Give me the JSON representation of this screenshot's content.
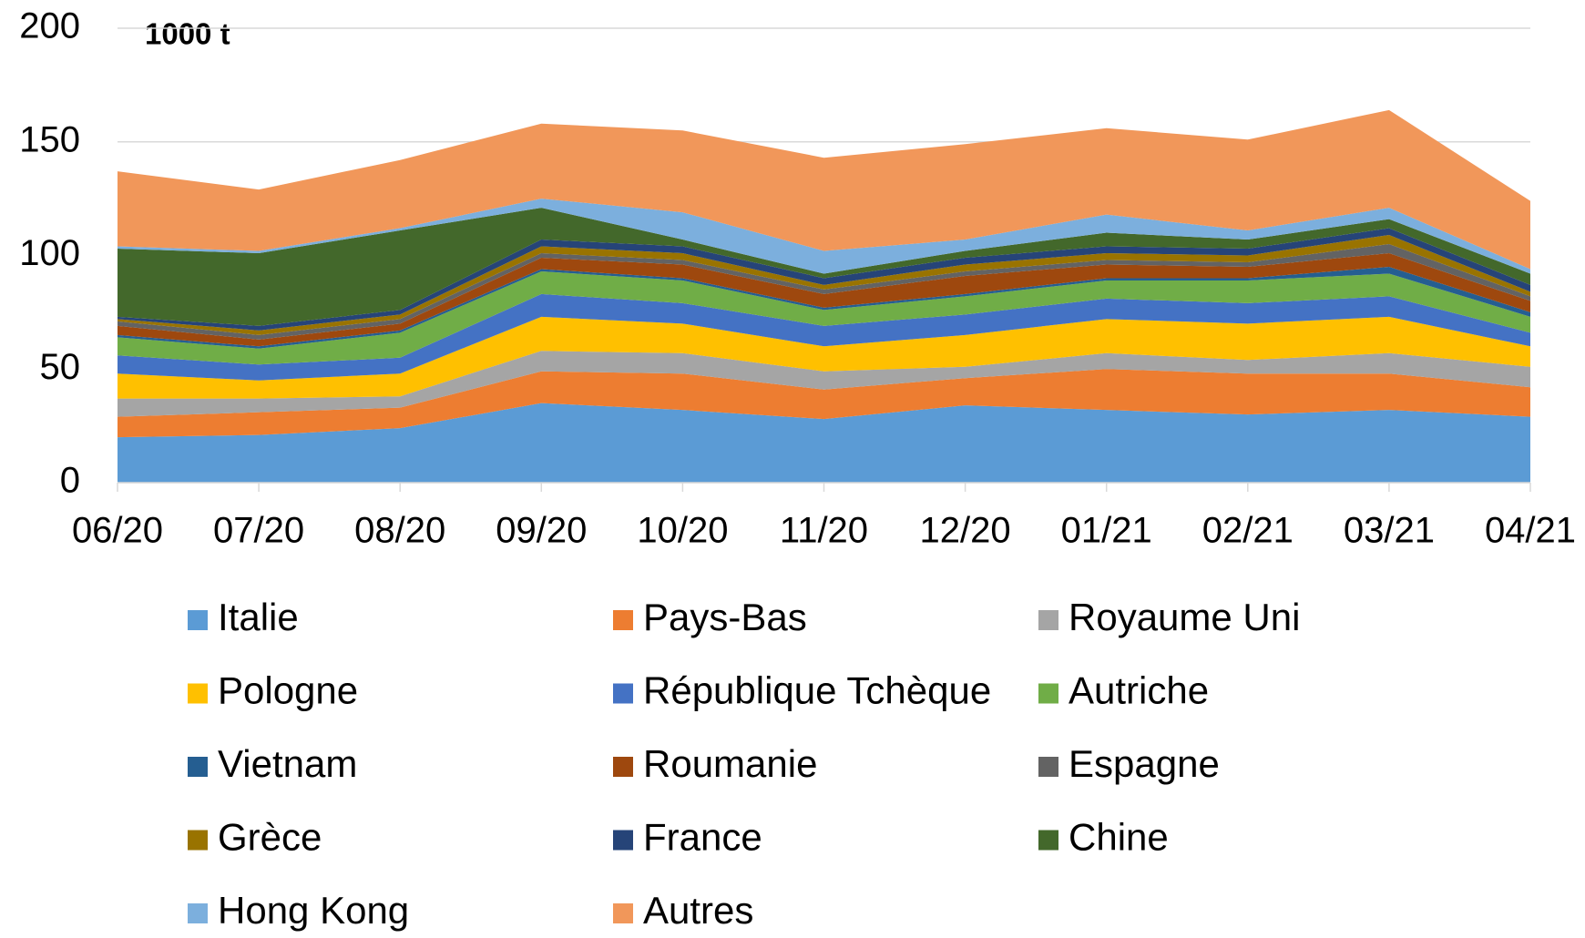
{
  "chart_data": {
    "type": "stacked-area",
    "unit_label": "1000 t",
    "categories": [
      "06/20",
      "07/20",
      "08/20",
      "09/20",
      "10/20",
      "11/20",
      "12/20",
      "01/21",
      "02/21",
      "03/21",
      "04/21"
    ],
    "series": [
      {
        "name": "Italie",
        "color": "#5b9bd5",
        "values": [
          20,
          21,
          24,
          35,
          32,
          28,
          34,
          32,
          30,
          32,
          29
        ]
      },
      {
        "name": "Pays-Bas",
        "color": "#ed7d31",
        "values": [
          9,
          10,
          9,
          14,
          16,
          13,
          12,
          18,
          18,
          16,
          13
        ]
      },
      {
        "name": "Royaume Uni",
        "color": "#a5a5a5",
        "values": [
          8,
          6,
          5,
          9,
          9,
          8,
          5,
          7,
          6,
          9,
          9
        ]
      },
      {
        "name": "Pologne",
        "color": "#ffc000",
        "values": [
          11,
          8,
          10,
          15,
          13,
          11,
          14,
          15,
          16,
          16,
          9
        ]
      },
      {
        "name": "République Tchèque",
        "color": "#4472c4",
        "values": [
          8,
          7,
          7,
          10,
          9,
          9,
          9,
          9,
          9,
          9,
          6
        ]
      },
      {
        "name": "Autriche",
        "color": "#70ad47",
        "values": [
          8,
          7,
          11,
          10,
          10,
          7,
          8,
          8,
          10,
          10,
          7
        ]
      },
      {
        "name": "Vietnam",
        "color": "#255e91",
        "values": [
          1,
          1,
          1,
          1,
          1,
          1,
          1,
          1,
          1,
          3,
          2
        ]
      },
      {
        "name": "Roumanie",
        "color": "#9e480e",
        "values": [
          4,
          3,
          3,
          5,
          6,
          6,
          8,
          6,
          5,
          6,
          5
        ]
      },
      {
        "name": "Espagne",
        "color": "#636363",
        "values": [
          2,
          2,
          2,
          2,
          2,
          2,
          2,
          2,
          2,
          4,
          2
        ]
      },
      {
        "name": "Grèce",
        "color": "#997300",
        "values": [
          1,
          2,
          2,
          3,
          3,
          2,
          3,
          3,
          3,
          4,
          2
        ]
      },
      {
        "name": "France",
        "color": "#264478",
        "values": [
          1,
          2,
          2,
          3,
          3,
          3,
          3,
          3,
          3,
          3,
          3
        ]
      },
      {
        "name": "Chine",
        "color": "#43682b",
        "values": [
          30,
          32,
          35,
          14,
          3,
          2,
          3,
          6,
          4,
          4,
          5
        ]
      },
      {
        "name": "Hong Kong",
        "color": "#7cafdd",
        "values": [
          1,
          1,
          1,
          4,
          12,
          10,
          5,
          8,
          4,
          5,
          2
        ]
      },
      {
        "name": "Autres",
        "color": "#f1975a",
        "values": [
          33,
          27,
          30,
          33,
          36,
          41,
          42,
          38,
          40,
          43,
          30
        ]
      }
    ],
    "ylim": [
      0,
      200
    ],
    "yticks": [
      0,
      50,
      100,
      150,
      200
    ],
    "grid": true
  }
}
